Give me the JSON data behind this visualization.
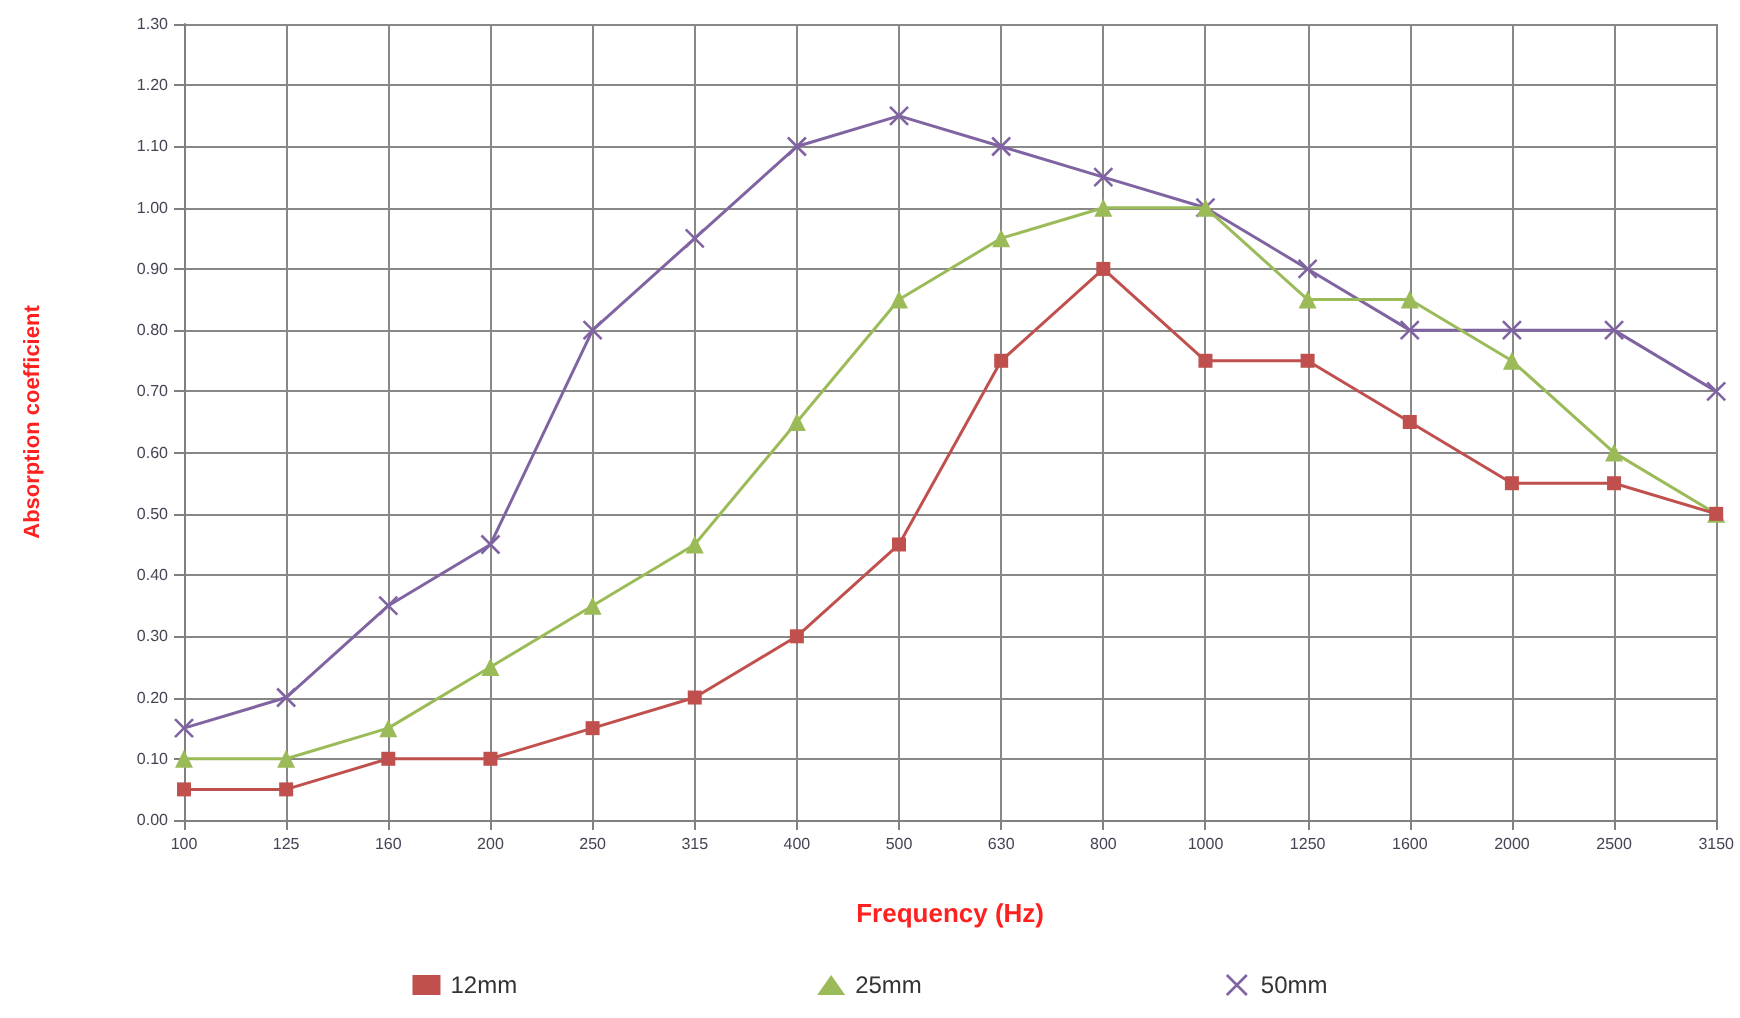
{
  "chart_data": {
    "type": "line",
    "xlabel": "Frequency (Hz)",
    "ylabel": "Absorption coefficient",
    "categories": [
      "100",
      "125",
      "160",
      "200",
      "250",
      "315",
      "400",
      "500",
      "630",
      "800",
      "1000",
      "1250",
      "1600",
      "2000",
      "2500",
      "3150"
    ],
    "series": [
      {
        "name": "12mm",
        "color": "#c0504d",
        "marker": "square",
        "values": [
          0.05,
          0.05,
          0.1,
          0.1,
          0.15,
          0.2,
          0.3,
          0.45,
          0.75,
          0.9,
          0.75,
          0.75,
          0.65,
          0.55,
          0.55,
          0.5
        ]
      },
      {
        "name": "25mm",
        "color": "#9bbb59",
        "marker": "triangle",
        "values": [
          0.1,
          0.1,
          0.15,
          0.25,
          0.35,
          0.45,
          0.65,
          0.85,
          0.95,
          1.0,
          1.0,
          0.85,
          0.85,
          0.75,
          0.6,
          0.5
        ]
      },
      {
        "name": "50mm",
        "color": "#8064a2",
        "marker": "cross",
        "values": [
          0.15,
          0.2,
          0.35,
          0.45,
          0.8,
          0.95,
          1.1,
          1.15,
          1.1,
          1.05,
          1.0,
          0.9,
          0.8,
          0.8,
          0.8,
          0.7
        ]
      }
    ],
    "ylim": [
      0,
      1.3
    ],
    "yticks": [
      {
        "value": 0,
        "label": "0.00"
      },
      {
        "value": 0.1,
        "label": "0.10"
      },
      {
        "value": 0.2,
        "label": "0.20"
      },
      {
        "value": 0.3,
        "label": "0.30"
      },
      {
        "value": 0.4,
        "label": "0.40"
      },
      {
        "value": 0.5,
        "label": "0.50"
      },
      {
        "value": 0.6,
        "label": "0.60"
      },
      {
        "value": 0.7,
        "label": "0.70"
      },
      {
        "value": 0.8,
        "label": "0.80"
      },
      {
        "value": 0.9,
        "label": "0.90"
      },
      {
        "value": 1.0,
        "label": "1.00"
      },
      {
        "value": 1.1,
        "label": "1.10"
      },
      {
        "value": 1.2,
        "label": "1.20"
      },
      {
        "value": 1.3,
        "label": "1.30"
      }
    ],
    "grid": true,
    "legend": "bottom",
    "line_style": "solid"
  }
}
